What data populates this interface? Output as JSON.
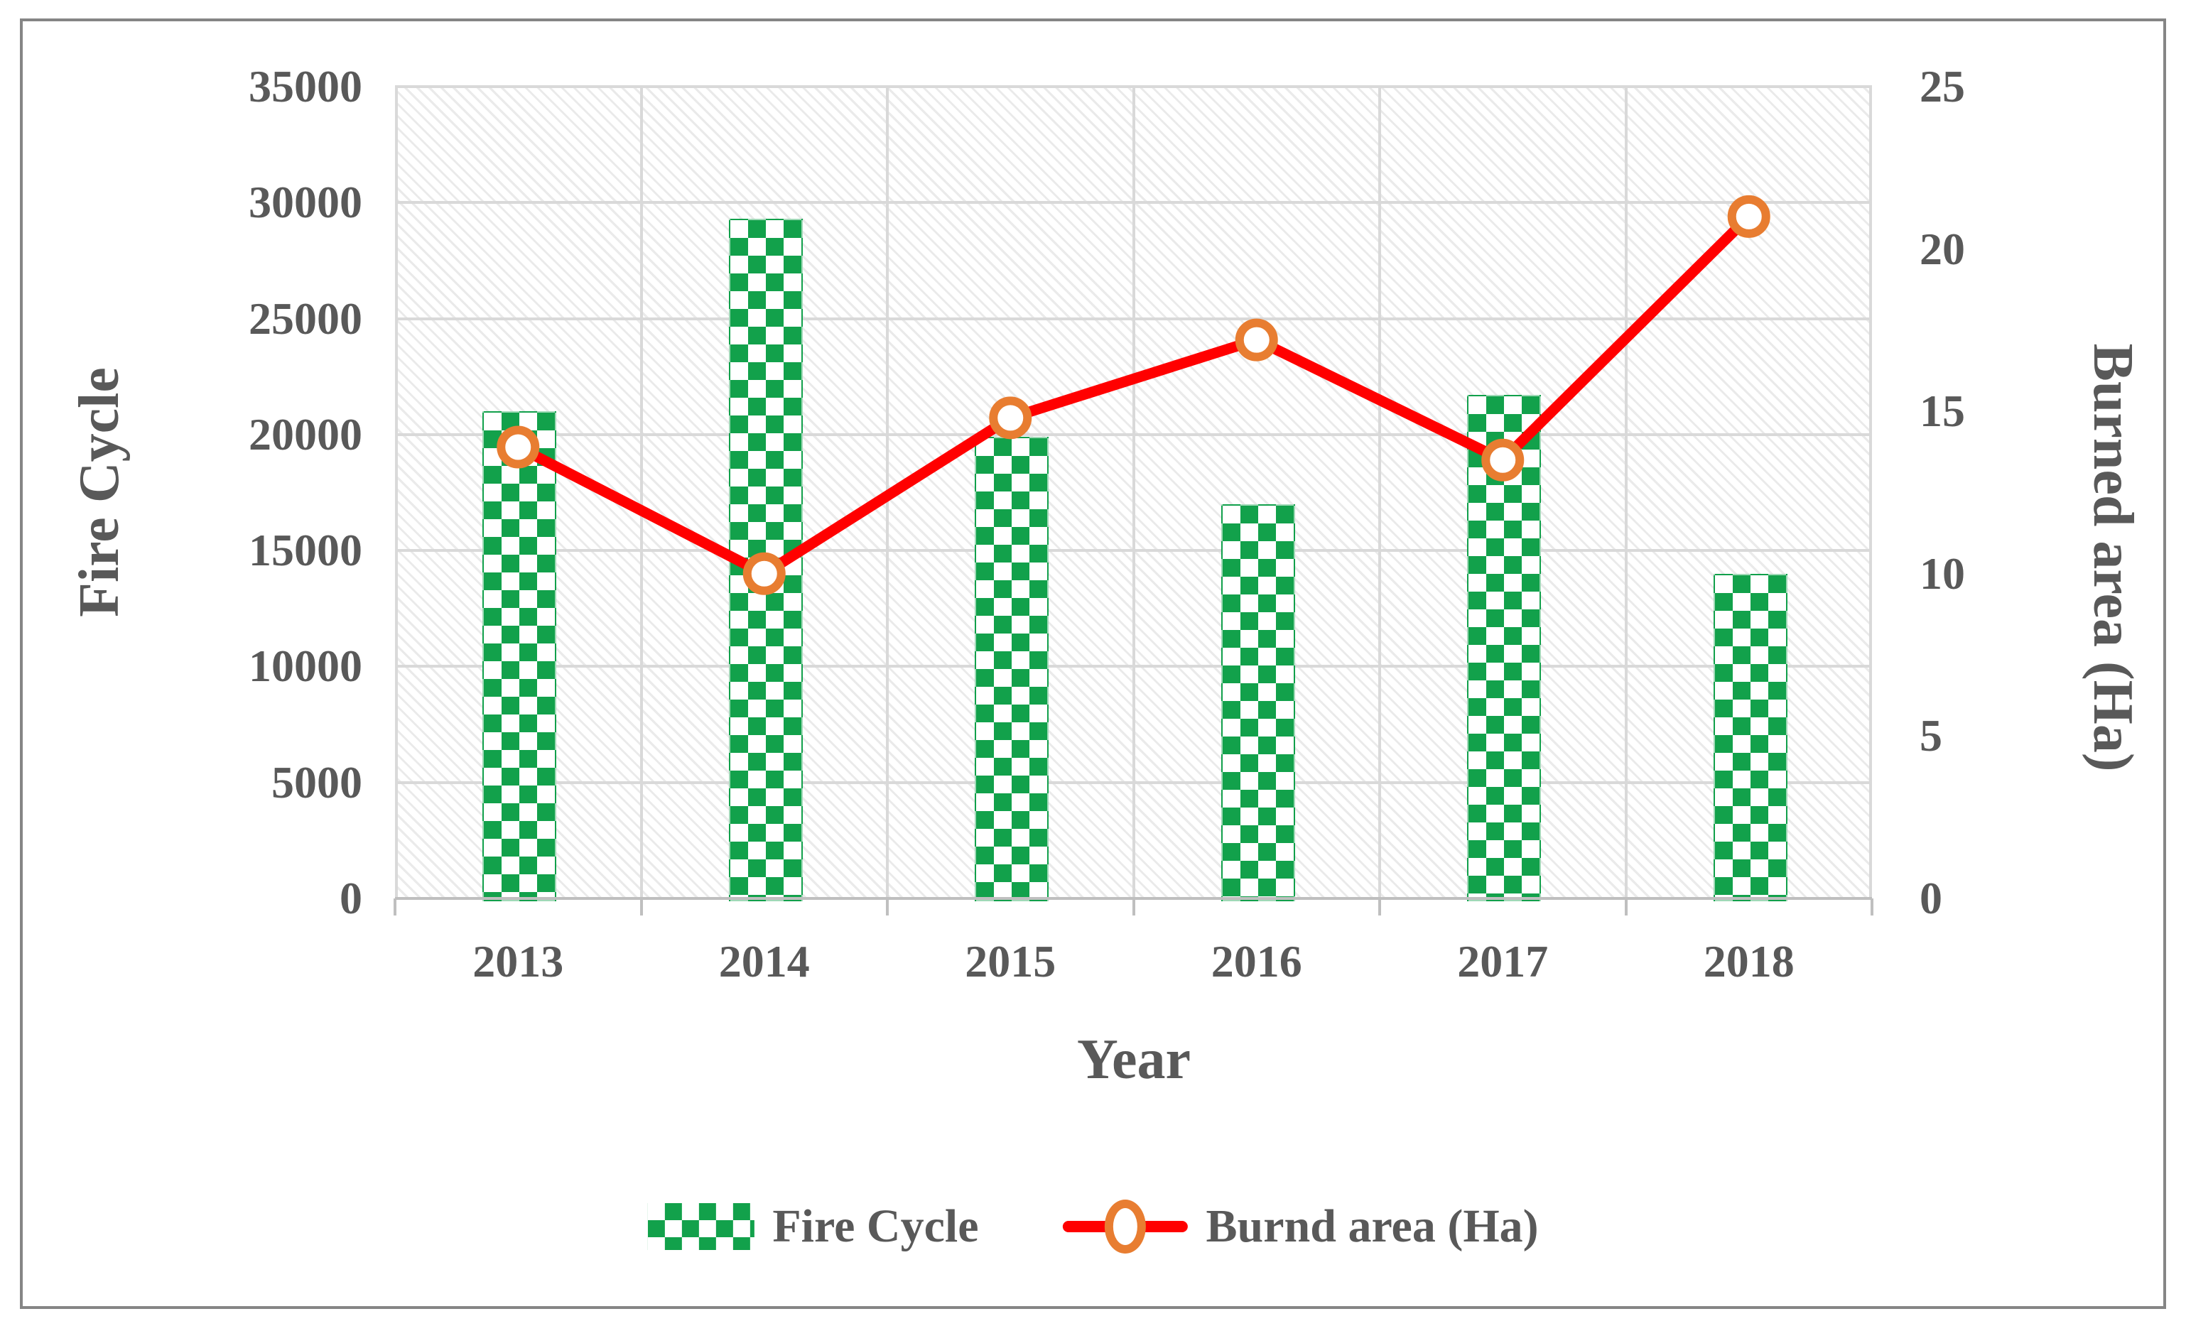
{
  "figure": {
    "background": "#ffffff",
    "border_color": "#858585",
    "text_color": "#595959"
  },
  "chart_data": {
    "type": "combo",
    "subtypes": [
      "bar",
      "line"
    ],
    "categories": [
      "2013",
      "2014",
      "2015",
      "2016",
      "2017",
      "2018"
    ],
    "series": [
      {
        "name": "Fire Cycle",
        "type": "bar",
        "axis": "left",
        "values": [
          21000,
          29300,
          19900,
          17000,
          21700,
          14000
        ],
        "color": "#12a14b",
        "pattern": "checker"
      },
      {
        "name": "Burnd area (Ha)",
        "type": "line",
        "axis": "right",
        "values": [
          13.9,
          10,
          14.8,
          17.2,
          13.5,
          21
        ],
        "color": "#ff0000",
        "marker": "circle",
        "marker_color": "#e87d31",
        "marker_fill": "#ffffff"
      }
    ],
    "left_axis": {
      "label": "Fire Cycle",
      "min": 0,
      "max": 35000,
      "step": 5000,
      "tick_labels": [
        "35000",
        "30000",
        "25000",
        "20000",
        "15000",
        "10000",
        "5000",
        "0"
      ]
    },
    "right_axis": {
      "label": "Burned area (Ha)",
      "min": 0,
      "max": 25,
      "step": 5,
      "tick_labels": [
        "25",
        "20",
        "15",
        "10",
        "5",
        "0"
      ]
    },
    "x_axis": {
      "label": "Year",
      "tick_labels": [
        "2013",
        "2014",
        "2015",
        "2016",
        "2017",
        "2018"
      ]
    },
    "legend": {
      "position": "bottom",
      "entries": [
        "Fire Cycle",
        "Burnd area (Ha)"
      ]
    },
    "grid": true,
    "gridline_color": "#d9d9d9",
    "axis_line_color": "#bfbfbf",
    "plot_hatch": "light-diagonal"
  }
}
